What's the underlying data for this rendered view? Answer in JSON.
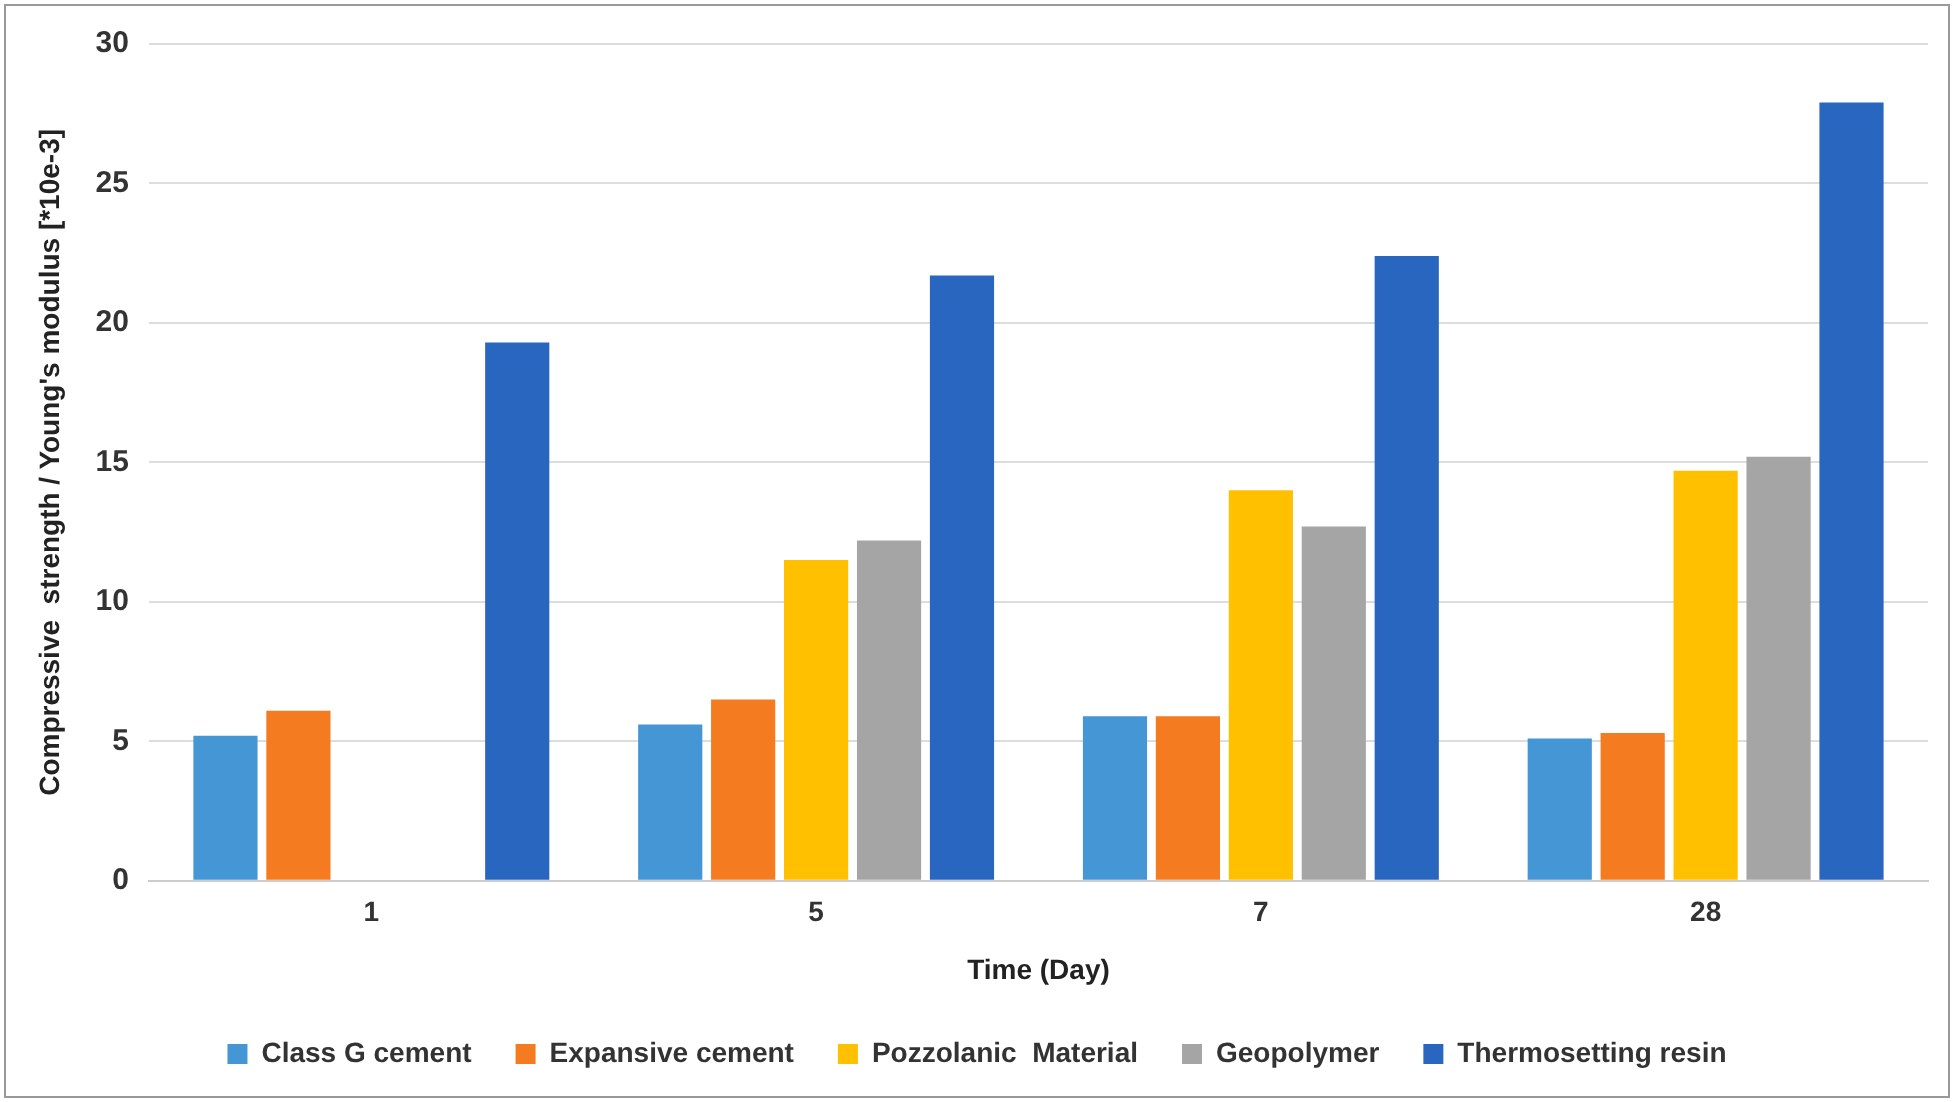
{
  "chart_data": {
    "type": "bar",
    "xlabel": "Time (Day)",
    "ylabel": "Compressive  strength / Young's modulus [*10e-3]",
    "categories": [
      "1",
      "5",
      "7",
      "28"
    ],
    "series": [
      {
        "name": "Class G cement",
        "color": "#4596d4",
        "values": [
          5.2,
          5.6,
          5.9,
          5.1
        ]
      },
      {
        "name": "Expansive cement",
        "color": "#f47b20",
        "values": [
          6.1,
          6.5,
          5.9,
          5.3
        ]
      },
      {
        "name": "Pozzolanic  Material",
        "color": "#ffc000",
        "values": [
          null,
          11.5,
          14.0,
          14.7
        ]
      },
      {
        "name": "Geopolymer",
        "color": "#a5a5a5",
        "values": [
          null,
          12.2,
          12.7,
          15.2
        ]
      },
      {
        "name": "Thermosetting resin",
        "color": "#2866c0",
        "values": [
          19.3,
          21.7,
          22.4,
          27.9
        ]
      }
    ],
    "ylim": [
      0,
      30
    ],
    "yticks": [
      0,
      5,
      10,
      15,
      20,
      25,
      30
    ],
    "grid": "y",
    "legend": "bottom"
  }
}
